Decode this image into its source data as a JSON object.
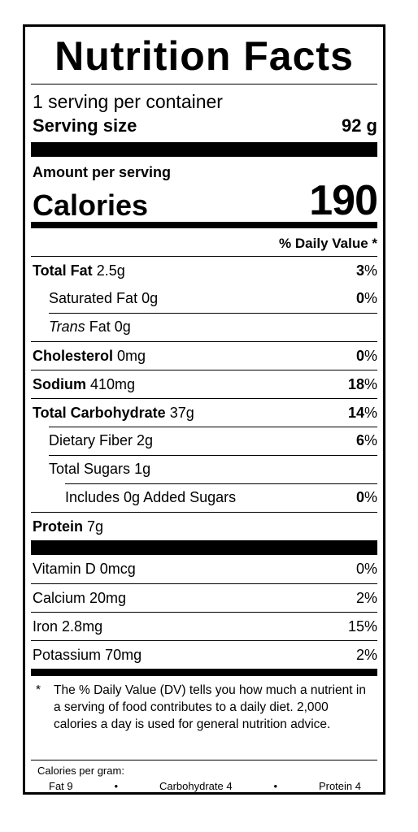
{
  "title": "Nutrition Facts",
  "servings_per_container": "1 serving per container",
  "serving_size_label": "Serving size",
  "serving_size_value": "92 g",
  "amount_per_serving": "Amount per serving",
  "calories_label": "Calories",
  "calories_value": "190",
  "dv_header": "% Daily Value *",
  "nutrients": [
    {
      "name": "Total Fat",
      "amount": "2.5g",
      "dv_num": "3",
      "dv_sym": "%"
    },
    {
      "name": "Saturated Fat",
      "amount": "0g",
      "dv_num": "0",
      "dv_sym": "%"
    },
    {
      "name_italic": "Trans",
      "name": "Fat",
      "amount": "0g"
    },
    {
      "name": "Cholesterol",
      "amount": "0mg",
      "dv_num": "0",
      "dv_sym": "%"
    },
    {
      "name": "Sodium",
      "amount": "410mg",
      "dv_num": "18",
      "dv_sym": "%"
    },
    {
      "name": "Total Carbohydrate",
      "amount": "37g",
      "dv_num": "14",
      "dv_sym": "%"
    },
    {
      "name": "Dietary Fiber",
      "amount": "2g",
      "dv_num": "6",
      "dv_sym": "%"
    },
    {
      "name": "Total Sugars",
      "amount": "1g"
    },
    {
      "name": "Includes 0g Added Sugars",
      "dv_num": "0",
      "dv_sym": "%"
    },
    {
      "name": "Protein",
      "amount": "7g"
    }
  ],
  "vitamins": [
    {
      "name": "Vitamin D",
      "amount": "0mcg",
      "dv": "0%"
    },
    {
      "name": "Calcium",
      "amount": "20mg",
      "dv": "2%"
    },
    {
      "name": "Iron",
      "amount": "2.8mg",
      "dv": "15%"
    },
    {
      "name": "Potassium",
      "amount": "70mg",
      "dv": "2%"
    }
  ],
  "footnote_star": "*",
  "footnote_text": "The % Daily Value (DV) tells you how much a nutrient in a serving of food contributes to a daily diet. 2,000 calories a day is used for general nutrition advice.",
  "calories_per_gram": {
    "title": "Calories per gram:",
    "fat": "Fat 9",
    "bullet": "•",
    "carbohydrate": "Carbohydrate 4",
    "protein": "Protein 4"
  }
}
